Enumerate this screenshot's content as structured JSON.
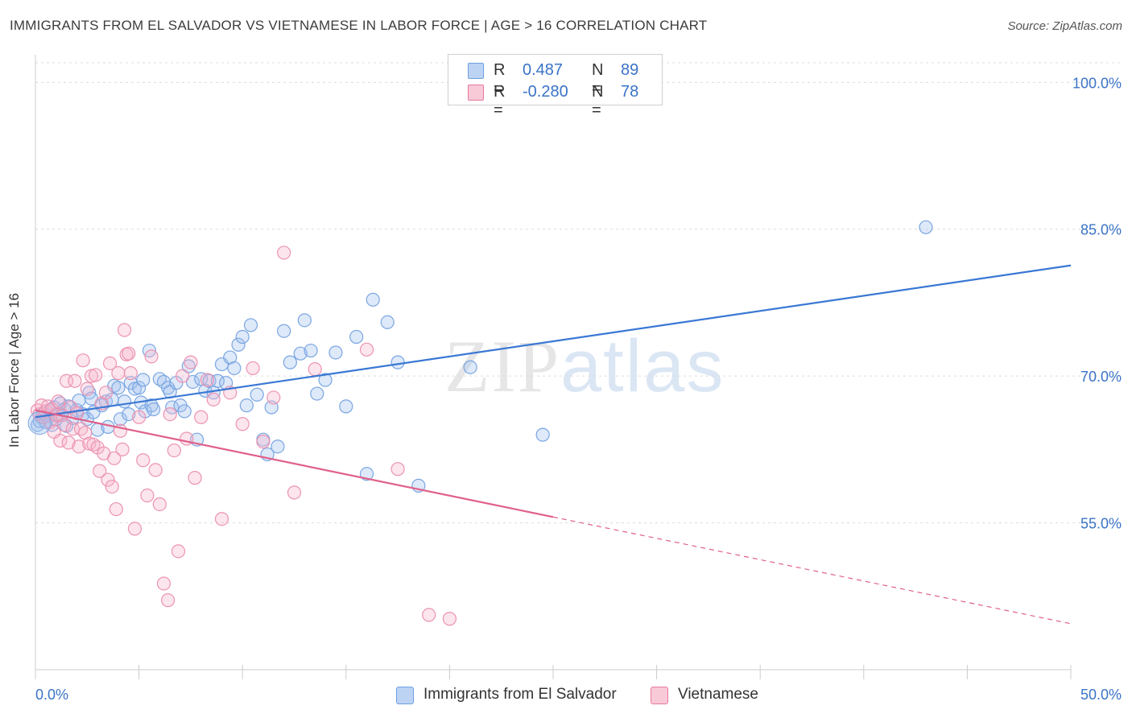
{
  "header": {
    "title": "IMMIGRANTS FROM EL SALVADOR VS VIETNAMESE IN LABOR FORCE | AGE > 16 CORRELATION CHART",
    "source": "Source: ZipAtlas.com"
  },
  "watermark": {
    "zip": "ZIP",
    "atlas": "atlas"
  },
  "legend": {
    "rows": [
      {
        "r_label": "R =",
        "r_value": "0.487",
        "n_label": "N =",
        "n_value": "89",
        "color": "#6d9fe0",
        "fill": "#bdd3f3"
      },
      {
        "r_label": "R =",
        "r_value": "-0.280",
        "n_label": "N =",
        "n_value": "78",
        "color": "#e8789e",
        "fill": "#f8c9d7"
      }
    ]
  },
  "bottom_legend": [
    {
      "label": "Immigrants from El Salvador",
      "fill": "#bdd3f3",
      "stroke": "#6d9fe0"
    },
    {
      "label": "Vietnamese",
      "fill": "#f8c9d7",
      "stroke": "#e8789e"
    }
  ],
  "chart_data": {
    "type": "scatter",
    "title": "IMMIGRANTS FROM EL SALVADOR VS VIETNAMESE IN LABOR FORCE | AGE > 16 CORRELATION CHART",
    "xlabel": "",
    "ylabel": "In Labor Force | Age > 16",
    "xlim": [
      0,
      50
    ],
    "ylim": [
      40,
      102
    ],
    "x_tick_labels": [
      "0.0%",
      "50.0%"
    ],
    "y_ticks": [
      55,
      70,
      85,
      100
    ],
    "y_tick_labels": [
      "55.0%",
      "70.0%",
      "85.0%",
      "100.0%"
    ],
    "grid": true,
    "series": [
      {
        "name": "Immigrants from El Salvador",
        "color": "#3a78d4",
        "points": [
          [
            0.1,
            65.0
          ],
          [
            0.2,
            65.4
          ],
          [
            0.3,
            65.8
          ],
          [
            0.4,
            66.2
          ],
          [
            0.5,
            65.3
          ],
          [
            0.6,
            65.9
          ],
          [
            0.7,
            66.5
          ],
          [
            0.8,
            65.0
          ],
          [
            0.9,
            66.8
          ],
          [
            1.0,
            65.6
          ],
          [
            1.1,
            66.0
          ],
          [
            1.2,
            67.2
          ],
          [
            1.4,
            66.6
          ],
          [
            1.5,
            64.9
          ],
          [
            1.6,
            66.9
          ],
          [
            1.8,
            65.7
          ],
          [
            2.0,
            66.5
          ],
          [
            2.1,
            67.5
          ],
          [
            2.3,
            66.1
          ],
          [
            2.5,
            65.6
          ],
          [
            2.6,
            68.3
          ],
          [
            2.7,
            67.7
          ],
          [
            2.8,
            66.3
          ],
          [
            3.0,
            64.5
          ],
          [
            3.2,
            67.0
          ],
          [
            3.4,
            67.4
          ],
          [
            3.5,
            64.8
          ],
          [
            3.7,
            67.6
          ],
          [
            3.8,
            69.0
          ],
          [
            4.0,
            68.8
          ],
          [
            4.1,
            65.6
          ],
          [
            4.3,
            67.4
          ],
          [
            4.5,
            66.1
          ],
          [
            4.6,
            69.3
          ],
          [
            4.8,
            68.7
          ],
          [
            5.0,
            68.8
          ],
          [
            5.1,
            67.3
          ],
          [
            5.2,
            69.6
          ],
          [
            5.3,
            66.4
          ],
          [
            5.5,
            72.6
          ],
          [
            5.6,
            67.0
          ],
          [
            5.7,
            66.6
          ],
          [
            6.0,
            69.7
          ],
          [
            6.2,
            69.4
          ],
          [
            6.4,
            68.8
          ],
          [
            6.5,
            68.4
          ],
          [
            6.6,
            66.8
          ],
          [
            6.8,
            69.3
          ],
          [
            7.0,
            67.0
          ],
          [
            7.2,
            66.4
          ],
          [
            7.4,
            71.0
          ],
          [
            7.6,
            69.4
          ],
          [
            7.8,
            63.5
          ],
          [
            8.0,
            69.7
          ],
          [
            8.2,
            68.5
          ],
          [
            8.4,
            69.5
          ],
          [
            8.6,
            68.3
          ],
          [
            8.8,
            69.5
          ],
          [
            9.0,
            71.2
          ],
          [
            9.2,
            69.3
          ],
          [
            9.4,
            71.9
          ],
          [
            9.6,
            70.8
          ],
          [
            9.8,
            73.2
          ],
          [
            10.0,
            74.0
          ],
          [
            10.2,
            67.0
          ],
          [
            10.4,
            75.2
          ],
          [
            10.7,
            68.1
          ],
          [
            11.0,
            63.5
          ],
          [
            11.2,
            62.0
          ],
          [
            11.4,
            66.8
          ],
          [
            11.7,
            62.8
          ],
          [
            12.0,
            74.6
          ],
          [
            12.3,
            71.4
          ],
          [
            12.8,
            72.3
          ],
          [
            13.0,
            75.7
          ],
          [
            13.3,
            72.6
          ],
          [
            13.6,
            68.2
          ],
          [
            14.0,
            69.6
          ],
          [
            14.5,
            72.4
          ],
          [
            15.0,
            66.9
          ],
          [
            15.5,
            74.0
          ],
          [
            16.0,
            60.0
          ],
          [
            16.3,
            77.8
          ],
          [
            17.0,
            75.5
          ],
          [
            17.5,
            71.4
          ],
          [
            18.5,
            58.8
          ],
          [
            21.0,
            70.9
          ],
          [
            24.5,
            64.0
          ],
          [
            43.0,
            85.2
          ]
        ],
        "trend": {
          "x": [
            0,
            50
          ],
          "y": [
            65.8,
            81.3
          ]
        }
      },
      {
        "name": "Vietnamese",
        "color": "#e0608a",
        "points": [
          [
            0.1,
            66.5
          ],
          [
            0.2,
            66.1
          ],
          [
            0.3,
            67.0
          ],
          [
            0.4,
            65.8
          ],
          [
            0.5,
            66.4
          ],
          [
            0.6,
            66.9
          ],
          [
            0.7,
            65.3
          ],
          [
            0.8,
            66.6
          ],
          [
            0.9,
            64.3
          ],
          [
            1.0,
            66.0
          ],
          [
            1.1,
            67.4
          ],
          [
            1.2,
            63.4
          ],
          [
            1.3,
            66.0
          ],
          [
            1.4,
            65.0
          ],
          [
            1.5,
            69.5
          ],
          [
            1.6,
            63.2
          ],
          [
            1.7,
            66.8
          ],
          [
            1.8,
            64.6
          ],
          [
            1.9,
            69.5
          ],
          [
            2.0,
            66.2
          ],
          [
            2.1,
            62.8
          ],
          [
            2.2,
            64.6
          ],
          [
            2.3,
            71.6
          ],
          [
            2.4,
            64.2
          ],
          [
            2.5,
            68.7
          ],
          [
            2.6,
            63.1
          ],
          [
            2.7,
            70.0
          ],
          [
            2.8,
            63.0
          ],
          [
            2.9,
            70.1
          ],
          [
            3.0,
            62.7
          ],
          [
            3.1,
            60.3
          ],
          [
            3.2,
            67.2
          ],
          [
            3.3,
            62.1
          ],
          [
            3.4,
            68.3
          ],
          [
            3.5,
            59.4
          ],
          [
            3.6,
            71.3
          ],
          [
            3.7,
            58.7
          ],
          [
            3.8,
            61.6
          ],
          [
            3.9,
            56.4
          ],
          [
            4.0,
            70.3
          ],
          [
            4.1,
            64.4
          ],
          [
            4.2,
            62.5
          ],
          [
            4.3,
            74.7
          ],
          [
            4.4,
            72.2
          ],
          [
            4.5,
            72.3
          ],
          [
            4.6,
            70.3
          ],
          [
            4.8,
            54.4
          ],
          [
            5.0,
            65.8
          ],
          [
            5.2,
            61.4
          ],
          [
            5.4,
            57.8
          ],
          [
            5.6,
            72.0
          ],
          [
            5.8,
            60.4
          ],
          [
            6.0,
            56.9
          ],
          [
            6.2,
            48.8
          ],
          [
            6.4,
            47.1
          ],
          [
            6.5,
            66.1
          ],
          [
            6.7,
            62.4
          ],
          [
            6.9,
            52.1
          ],
          [
            7.1,
            70.0
          ],
          [
            7.3,
            63.6
          ],
          [
            7.5,
            71.4
          ],
          [
            7.7,
            59.6
          ],
          [
            8.0,
            65.8
          ],
          [
            8.3,
            69.6
          ],
          [
            8.6,
            67.6
          ],
          [
            9.0,
            55.4
          ],
          [
            9.4,
            68.3
          ],
          [
            10.0,
            65.1
          ],
          [
            10.5,
            70.8
          ],
          [
            11.0,
            63.3
          ],
          [
            11.5,
            67.8
          ],
          [
            12.0,
            82.6
          ],
          [
            12.5,
            58.1
          ],
          [
            13.5,
            70.7
          ],
          [
            16.0,
            72.7
          ],
          [
            17.5,
            60.5
          ],
          [
            19.0,
            45.6
          ],
          [
            20.0,
            45.2
          ]
        ],
        "trend": {
          "x": [
            0,
            50
          ],
          "y": [
            66.5,
            44.7
          ],
          "solid_until_x": 25
        }
      }
    ]
  }
}
